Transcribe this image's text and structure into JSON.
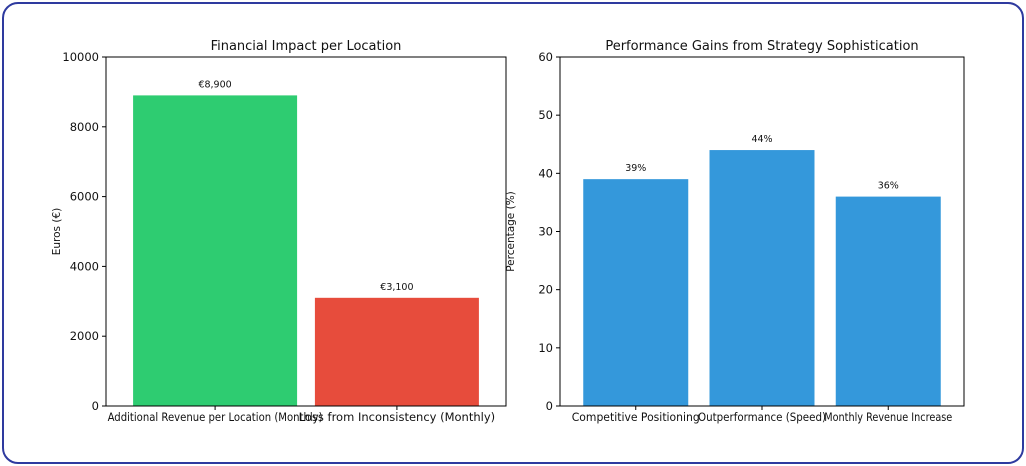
{
  "chart_data": [
    {
      "type": "bar",
      "title": "Financial Impact per Location",
      "xlabel": "",
      "ylabel": "Euros (€)",
      "ylim": [
        0,
        10000
      ],
      "yticks": [
        0,
        2000,
        4000,
        6000,
        8000,
        10000
      ],
      "categories": [
        "Additional Revenue per Location (Monthly)",
        "Loss from Inconsistency (Monthly)"
      ],
      "values": [
        8900,
        3100
      ],
      "data_labels": [
        "€8,900",
        "€3,100"
      ],
      "colors": [
        "#2ecc71",
        "#e74c3c"
      ],
      "grid": false
    },
    {
      "type": "bar",
      "title": "Performance Gains from Strategy Sophistication",
      "xlabel": "",
      "ylabel": "Percentage (%)",
      "ylim": [
        0,
        60
      ],
      "yticks": [
        0,
        10,
        20,
        30,
        40,
        50,
        60
      ],
      "categories": [
        "Competitive Positioning",
        "Outperformance (Speed)",
        "Monthly Revenue Increase"
      ],
      "values": [
        39,
        44,
        36
      ],
      "data_labels": [
        "39%",
        "44%",
        "36%"
      ],
      "colors": [
        "#3498db",
        "#3498db",
        "#3498db"
      ],
      "grid": false
    }
  ]
}
